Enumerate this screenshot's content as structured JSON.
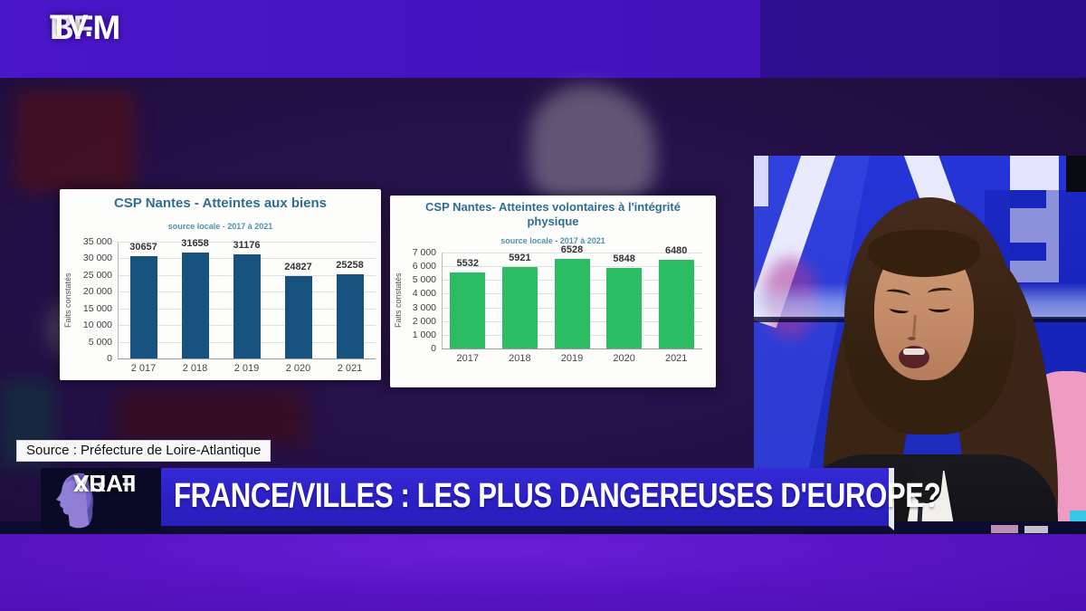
{
  "channel": {
    "logo_line1": "BFM",
    "logo_line2": "TV."
  },
  "source_label": "Source : Préfecture de Loire-Atlantique",
  "banner": {
    "program_line1": "VRAI",
    "program_line2": "FAUX",
    "headline": "FRANCE/VILLES : LES PLUS DANGEREUSES D'EUROPE?"
  },
  "chart_data": [
    {
      "type": "bar",
      "title": "CSP Nantes - Atteintes aux biens",
      "subtitle": "source locale - 2017 à 2021",
      "ylabel": "Faits constatés",
      "xlabel": "",
      "categories": [
        "2 017",
        "2 018",
        "2 019",
        "2 020",
        "2 021"
      ],
      "values": [
        30657,
        31658,
        31176,
        24827,
        25258
      ],
      "value_labels": [
        "30657",
        "31658",
        "31176",
        "24827",
        "25258"
      ],
      "ylim": [
        0,
        35000
      ],
      "ytick_step": 5000,
      "yticks_top_to_bottom": [
        "35 000",
        "30 000",
        "25 000",
        "20 000",
        "15 000",
        "10 000",
        "5 000",
        "0"
      ],
      "bar_color": "#17527e",
      "grid": true,
      "legend": "none"
    },
    {
      "type": "bar",
      "title": "CSP Nantes- Atteintes volontaires à l'intégrité physique",
      "subtitle": "source locale - 2017 à 2021",
      "ylabel": "Faits constatés",
      "xlabel": "",
      "categories": [
        "2017",
        "2018",
        "2019",
        "2020",
        "2021"
      ],
      "values": [
        5532,
        5921,
        6528,
        5848,
        6480
      ],
      "value_labels": [
        "5532",
        "5921",
        "6528",
        "5848",
        "6480"
      ],
      "ylim": [
        0,
        7000
      ],
      "ytick_step": 1000,
      "yticks_top_to_bottom": [
        "7 000",
        "6 000",
        "5 000",
        "4 000",
        "3 000",
        "2 000",
        "1 000",
        "0"
      ],
      "bar_color": "#2abd63",
      "grid": true,
      "legend": "none"
    }
  ],
  "colors": {
    "top_band_purple": "#4313bd",
    "studio_dark_purple": "#241046",
    "studio_blue": "#2130cc",
    "banner_blue": "#2b20c5",
    "desk_purple": "#5712c1",
    "bar_blue": "#17527e",
    "bar_green": "#2abd63",
    "pink_accent": "#ef9cc5",
    "cyan_accent": "#35c8e8"
  }
}
